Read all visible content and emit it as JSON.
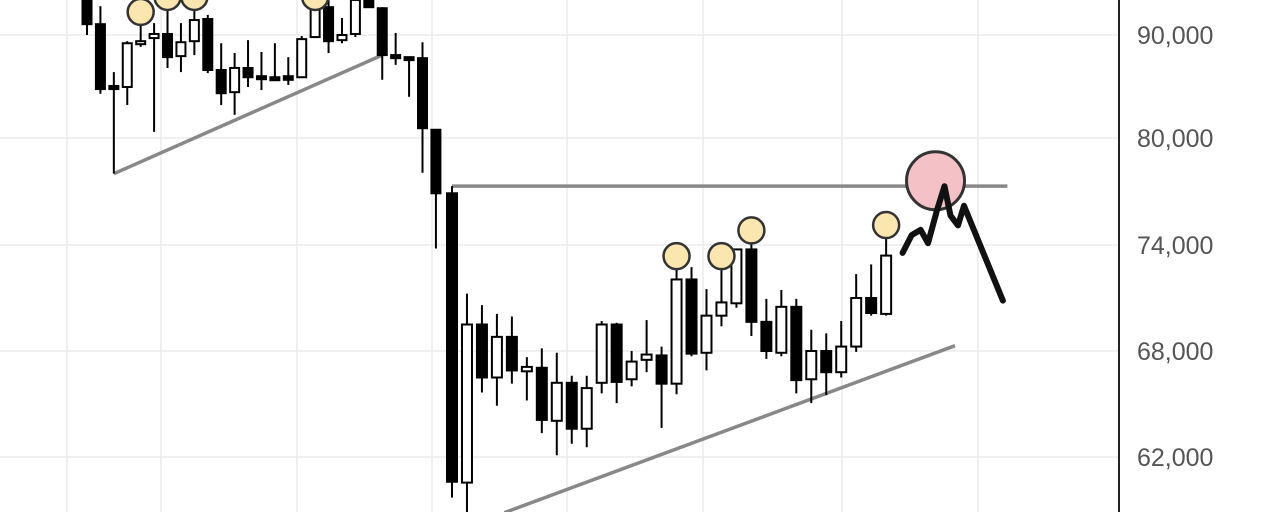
{
  "chart_data": {
    "type": "candlestick",
    "title": "",
    "xlabel": "",
    "ylabel": "",
    "y_ticks": [
      90000,
      80000,
      74000,
      68000,
      62000
    ],
    "y_tick_labels": [
      "90,000",
      "80,000",
      "74,000",
      "68,000",
      "62,000"
    ],
    "grid": true,
    "colors": {
      "up": "#ffffff",
      "down": "#000000",
      "outline": "#000000",
      "grid": "#ececec",
      "trendline": "#888888",
      "highlight": "#fbe6b0",
      "target": "#f4c2c6",
      "axis_text": "#555555"
    },
    "candles": [
      [
        93400,
        93400,
        90000,
        91050
      ],
      [
        91050,
        92800,
        84300,
        84750
      ],
      [
        85050,
        86400,
        78000,
        84750
      ],
      [
        84950,
        89400,
        83200,
        89200
      ],
      [
        89200,
        91950,
        88850,
        89400
      ],
      [
        89700,
        91150,
        80600,
        90100
      ],
      [
        90100,
        93400,
        86800,
        87850
      ],
      [
        87950,
        91150,
        86400,
        89300
      ],
      [
        89400,
        93400,
        88050,
        91450
      ],
      [
        91550,
        91950,
        86300,
        86600
      ],
      [
        86600,
        89200,
        83200,
        84350
      ],
      [
        84450,
        88250,
        82250,
        86800
      ],
      [
        86800,
        89500,
        84950,
        85900
      ],
      [
        86000,
        88350,
        84650,
        85850
      ],
      [
        85900,
        89200,
        85550,
        85650
      ],
      [
        86000,
        87850,
        85150,
        85650
      ],
      [
        85900,
        89900,
        85850,
        89600
      ],
      [
        89800,
        93400,
        89700,
        92700
      ],
      [
        92700,
        93400,
        88250,
        89400
      ],
      [
        89500,
        91650,
        89200,
        90000
      ],
      [
        90100,
        93400,
        89800,
        93400
      ],
      [
        93400,
        93400,
        92700,
        92700
      ],
      [
        92600,
        92700,
        85650,
        88050
      ],
      [
        88050,
        90200,
        87100,
        87750
      ],
      [
        87850,
        87850,
        84000,
        87750
      ],
      [
        87750,
        89300,
        78050,
        80950
      ],
      [
        80800,
        80800,
        73800,
        76900
      ],
      [
        76900,
        77300,
        59700,
        60600
      ],
      [
        60550,
        71250,
        58850,
        69500
      ],
      [
        69500,
        70600,
        65650,
        66500
      ],
      [
        66500,
        70100,
        64900,
        68800
      ],
      [
        68800,
        69950,
        66150,
        66900
      ],
      [
        66850,
        67650,
        65200,
        67100
      ],
      [
        67050,
        68150,
        63350,
        64100
      ],
      [
        64050,
        67900,
        62100,
        66200
      ],
      [
        66200,
        66600,
        62750,
        63600
      ],
      [
        63600,
        66600,
        62550,
        65900
      ],
      [
        66200,
        69700,
        65600,
        69500
      ],
      [
        69500,
        69600,
        65050,
        66250
      ],
      [
        66400,
        68000,
        66000,
        67400
      ],
      [
        67500,
        69750,
        66800,
        67800
      ],
      [
        67750,
        68250,
        63650,
        66150
      ],
      [
        66150,
        73200,
        65550,
        72050
      ],
      [
        72050,
        72750,
        67700,
        67850
      ],
      [
        67900,
        71500,
        66900,
        70000
      ],
      [
        70000,
        73200,
        69400,
        70750
      ],
      [
        70700,
        73750,
        70450,
        73750
      ],
      [
        73750,
        74650,
        68850,
        69650
      ],
      [
        69650,
        70950,
        67550,
        68000
      ],
      [
        67900,
        71450,
        67700,
        70500
      ],
      [
        70500,
        70950,
        65600,
        66350
      ],
      [
        66400,
        69200,
        65050,
        68000
      ],
      [
        68000,
        69000,
        65500,
        66800
      ],
      [
        66800,
        69700,
        66500,
        68250
      ],
      [
        68250,
        72350,
        67950,
        71000
      ],
      [
        71000,
        72900,
        70000,
        70150
      ],
      [
        70100,
        74950,
        70000,
        73400
      ]
    ],
    "candle_fields": [
      "open",
      "high",
      "low",
      "close"
    ],
    "highlighted_highs": [
      4,
      6,
      8,
      17,
      42,
      45,
      47,
      56
    ],
    "lines": [
      {
        "name": "left-support",
        "from": [
          2,
          78000
        ],
        "to": [
          22,
          88050
        ]
      },
      {
        "name": "resistance",
        "from": [
          27,
          77300
        ],
        "to": [
          64.1,
          77300
        ]
      },
      {
        "name": "rising-support",
        "from": [
          30.5,
          58850
        ],
        "to": [
          60.6,
          68300
        ]
      }
    ],
    "target_circle": {
      "at": [
        59.3,
        77600
      ]
    },
    "projection_path": [
      [
        57.1,
        73550
      ],
      [
        57.7,
        74550
      ],
      [
        58.3,
        74850
      ],
      [
        58.8,
        74100
      ],
      [
        59.4,
        75950
      ],
      [
        59.9,
        77300
      ],
      [
        60.3,
        75650
      ],
      [
        60.8,
        75100
      ],
      [
        61.2,
        76200
      ],
      [
        63.8,
        70850
      ]
    ]
  }
}
